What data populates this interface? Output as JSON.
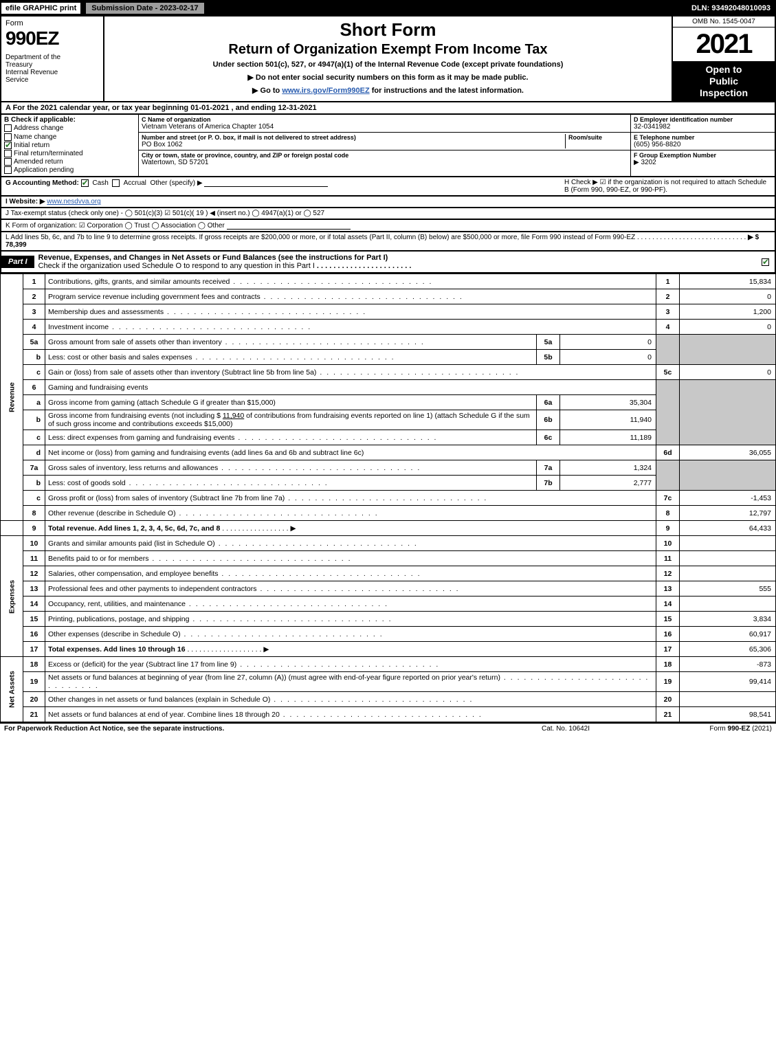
{
  "topbar": {
    "efile": "efile GRAPHIC print",
    "submission": "Submission Date - 2023-02-17",
    "dln": "DLN: 93492048010093"
  },
  "header": {
    "form_word": "Form",
    "form_num": "990EZ",
    "dept": "Department of the Treasury\nInternal Revenue Service",
    "short": "Short Form",
    "title2": "Return of Organization Exempt From Income Tax",
    "sub": "Under section 501(c), 527, or 4947(a)(1) of the Internal Revenue Code (except private foundations)",
    "note1": "▶ Do not enter social security numbers on this form as it may be made public.",
    "note2_pre": "▶ Go to ",
    "note2_link": "www.irs.gov/Form990EZ",
    "note2_post": " for instructions and the latest information.",
    "omb": "OMB No. 1545-0047",
    "year": "2021",
    "open": "Open to Public Inspection"
  },
  "rowA": "A  For the 2021 calendar year, or tax year beginning 01-01-2021 , and ending 12-31-2021",
  "colB": {
    "hdr": "B  Check if applicable:",
    "items": [
      {
        "label": "Address change",
        "checked": false
      },
      {
        "label": "Name change",
        "checked": false
      },
      {
        "label": "Initial return",
        "checked": true
      },
      {
        "label": "Final return/terminated",
        "checked": false
      },
      {
        "label": "Amended return",
        "checked": false
      },
      {
        "label": "Application pending",
        "checked": false
      }
    ]
  },
  "colC": {
    "name_lbl": "C Name of organization",
    "name": "Vietnam Veterans of America Chapter 1054",
    "addr_lbl": "Number and street (or P. O. box, if mail is not delivered to street address)",
    "addr": "PO Box 1062",
    "room_lbl": "Room/suite",
    "room": "",
    "city_lbl": "City or town, state or province, country, and ZIP or foreign postal code",
    "city": "Watertown, SD  57201"
  },
  "colD": {
    "ein_lbl": "D Employer identification number",
    "ein": "32-0341982",
    "tel_lbl": "E Telephone number",
    "tel": "(605) 956-8820",
    "grp_lbl": "F Group Exemption Number",
    "grp": "▶ 3202"
  },
  "rowG": {
    "label": "G Accounting Method:",
    "cash": "Cash",
    "accrual": "Accrual",
    "other": "Other (specify) ▶",
    "h": "H  Check ▶ ☑ if the organization is not required to attach Schedule B (Form 990, 990-EZ, or 990-PF)."
  },
  "rowI": {
    "label": "I Website: ▶",
    "url": "www.nesdvva.org"
  },
  "rowJ": "J Tax-exempt status (check only one) - ◯ 501(c)(3)  ☑ 501(c)( 19 ) ◀ (insert no.)  ◯ 4947(a)(1) or  ◯ 527",
  "rowK": "K Form of organization:  ☑ Corporation  ◯ Trust  ◯ Association  ◯ Other",
  "rowL": {
    "text": "L Add lines 5b, 6c, and 7b to line 9 to determine gross receipts. If gross receipts are $200,000 or more, or if total assets (Part II, column (B) below) are $500,000 or more, file Form 990 instead of Form 990-EZ",
    "amount": "▶ $ 78,399"
  },
  "part1": {
    "tag": "Part I",
    "title": "Revenue, Expenses, and Changes in Net Assets or Fund Balances (see the instructions for Part I)",
    "sub": "Check if the organization used Schedule O to respond to any question in this Part I",
    "checked": true
  },
  "sidelabels": {
    "rev": "Revenue",
    "exp": "Expenses",
    "na": "Net Assets"
  },
  "lines": {
    "l1": {
      "n": "1",
      "d": "Contributions, gifts, grants, and similar amounts received",
      "c": "1",
      "a": "15,834"
    },
    "l2": {
      "n": "2",
      "d": "Program service revenue including government fees and contracts",
      "c": "2",
      "a": "0"
    },
    "l3": {
      "n": "3",
      "d": "Membership dues and assessments",
      "c": "3",
      "a": "1,200"
    },
    "l4": {
      "n": "4",
      "d": "Investment income",
      "c": "4",
      "a": "0"
    },
    "l5a": {
      "n": "5a",
      "d": "Gross amount from sale of assets other than inventory",
      "bn": "5a",
      "bv": "0"
    },
    "l5b": {
      "n": "b",
      "d": "Less: cost or other basis and sales expenses",
      "bn": "5b",
      "bv": "0"
    },
    "l5c": {
      "n": "c",
      "d": "Gain or (loss) from sale of assets other than inventory (Subtract line 5b from line 5a)",
      "c": "5c",
      "a": "0"
    },
    "l6": {
      "n": "6",
      "d": "Gaming and fundraising events"
    },
    "l6a": {
      "n": "a",
      "d": "Gross income from gaming (attach Schedule G if greater than $15,000)",
      "bn": "6a",
      "bv": "35,304"
    },
    "l6b": {
      "n": "b",
      "d1": "Gross income from fundraising events (not including $ ",
      "amt": "11,940",
      "d2": " of contributions from fundraising events reported on line 1) (attach Schedule G if the sum of such gross income and contributions exceeds $15,000)",
      "bn": "6b",
      "bv": "11,940"
    },
    "l6c": {
      "n": "c",
      "d": "Less: direct expenses from gaming and fundraising events",
      "bn": "6c",
      "bv": "11,189"
    },
    "l6d": {
      "n": "d",
      "d": "Net income or (loss) from gaming and fundraising events (add lines 6a and 6b and subtract line 6c)",
      "c": "6d",
      "a": "36,055"
    },
    "l7a": {
      "n": "7a",
      "d": "Gross sales of inventory, less returns and allowances",
      "bn": "7a",
      "bv": "1,324"
    },
    "l7b": {
      "n": "b",
      "d": "Less: cost of goods sold",
      "bn": "7b",
      "bv": "2,777"
    },
    "l7c": {
      "n": "c",
      "d": "Gross profit or (loss) from sales of inventory (Subtract line 7b from line 7a)",
      "c": "7c",
      "a": "-1,453"
    },
    "l8": {
      "n": "8",
      "d": "Other revenue (describe in Schedule O)",
      "c": "8",
      "a": "12,797"
    },
    "l9": {
      "n": "9",
      "d": "Total revenue. Add lines 1, 2, 3, 4, 5c, 6d, 7c, and 8",
      "c": "9",
      "a": "64,433",
      "bold": true
    },
    "l10": {
      "n": "10",
      "d": "Grants and similar amounts paid (list in Schedule O)",
      "c": "10",
      "a": ""
    },
    "l11": {
      "n": "11",
      "d": "Benefits paid to or for members",
      "c": "11",
      "a": ""
    },
    "l12": {
      "n": "12",
      "d": "Salaries, other compensation, and employee benefits",
      "c": "12",
      "a": ""
    },
    "l13": {
      "n": "13",
      "d": "Professional fees and other payments to independent contractors",
      "c": "13",
      "a": "555"
    },
    "l14": {
      "n": "14",
      "d": "Occupancy, rent, utilities, and maintenance",
      "c": "14",
      "a": ""
    },
    "l15": {
      "n": "15",
      "d": "Printing, publications, postage, and shipping",
      "c": "15",
      "a": "3,834"
    },
    "l16": {
      "n": "16",
      "d": "Other expenses (describe in Schedule O)",
      "c": "16",
      "a": "60,917"
    },
    "l17": {
      "n": "17",
      "d": "Total expenses. Add lines 10 through 16",
      "c": "17",
      "a": "65,306",
      "bold": true
    },
    "l18": {
      "n": "18",
      "d": "Excess or (deficit) for the year (Subtract line 17 from line 9)",
      "c": "18",
      "a": "-873"
    },
    "l19": {
      "n": "19",
      "d": "Net assets or fund balances at beginning of year (from line 27, column (A)) (must agree with end-of-year figure reported on prior year's return)",
      "c": "19",
      "a": "99,414"
    },
    "l20": {
      "n": "20",
      "d": "Other changes in net assets or fund balances (explain in Schedule O)",
      "c": "20",
      "a": ""
    },
    "l21": {
      "n": "21",
      "d": "Net assets or fund balances at end of year. Combine lines 18 through 20",
      "c": "21",
      "a": "98,541"
    }
  },
  "footer": {
    "l": "For Paperwork Reduction Act Notice, see the separate instructions.",
    "m": "Cat. No. 10642I",
    "r": "Form 990-EZ (2021)"
  }
}
